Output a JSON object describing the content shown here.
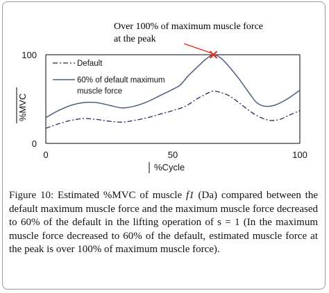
{
  "chart_data": {
    "type": "line",
    "annotation": [
      "Over 100% of maximum muscle force",
      "at the peak"
    ],
    "xlabel": "%Cycle",
    "ylabel": "%MVC",
    "xlim": [
      0,
      100
    ],
    "ylim": [
      0,
      100
    ],
    "xticks": [
      "0",
      "50",
      "100"
    ],
    "yticks": [
      "0",
      "100"
    ],
    "peak_marker": {
      "x": 66,
      "y": 100,
      "color": "#e8251f"
    },
    "series": [
      {
        "name": "Default",
        "style": "dash-dot",
        "color": "#1f2b5e",
        "x": [
          0,
          5,
          10,
          15,
          20,
          25,
          30,
          35,
          40,
          45,
          50,
          55,
          60,
          64,
          66,
          68,
          72,
          76,
          80,
          84,
          88,
          92,
          96,
          100
        ],
        "values": [
          17,
          22,
          26,
          28,
          27,
          25,
          24,
          26,
          29,
          33,
          37,
          42,
          51,
          57,
          59,
          58,
          54,
          46,
          37,
          30,
          26,
          27,
          32,
          37
        ]
      },
      {
        "name": "60% of default maximum muscle force",
        "legend_lines": [
          "60% of default maximum",
          "muscle force"
        ],
        "style": "solid",
        "color": "#4a5d84",
        "x": [
          0,
          5,
          10,
          15,
          20,
          25,
          30,
          35,
          40,
          45,
          50,
          53,
          56,
          60,
          63,
          66,
          69,
          72,
          76,
          80,
          83,
          86,
          90,
          95,
          100
        ],
        "values": [
          29,
          37,
          43,
          46,
          46,
          43,
          40,
          42,
          47,
          54,
          61,
          66,
          76,
          87,
          95,
          100,
          96,
          87,
          73,
          57,
          46,
          42,
          43,
          50,
          60
        ]
      }
    ]
  },
  "caption": {
    "label": "Figure 10:",
    "text": " Estimated %MVC of muscle ",
    "muscle": "f1",
    "text2": " (Da) compared between the default maximum muscle force and the maximum muscle force decreased to 60% of the default in the lifting operation of s = 1 (In the maximum muscle force decreased to 60% of the default, estimated muscle force at the peak is over 100% of maximum muscle force)."
  }
}
